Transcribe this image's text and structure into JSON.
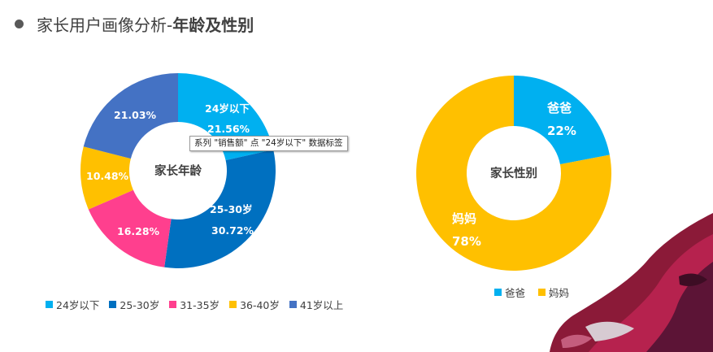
{
  "header": {
    "title_plain": "家长用户画像分析-",
    "title_bold": "年龄及性别"
  },
  "tooltip": "系列 \"销售额\" 点 \"24岁以下\" 数据标签",
  "chart_data": [
    {
      "type": "pie",
      "center_label": "家长年龄",
      "categories": [
        "24岁以下",
        "25-30岁",
        "31-35岁",
        "36-40岁",
        "41岁以上"
      ],
      "values": [
        21.56,
        30.72,
        16.28,
        10.48,
        21.03
      ],
      "labels": [
        "21.56%",
        "30.72%",
        "16.28%",
        "10.48%",
        "21.03%"
      ],
      "colors": [
        "#00b0f0",
        "#0070c0",
        "#ff3f8e",
        "#ffc000",
        "#4472c4"
      ],
      "legend_placement": "bottom"
    },
    {
      "type": "pie",
      "center_label": "家长性别",
      "categories": [
        "爸爸",
        "妈妈"
      ],
      "values": [
        22,
        78
      ],
      "labels": [
        "22%",
        "78%"
      ],
      "colors": [
        "#00b0f0",
        "#ffc000"
      ],
      "legend_placement": "bottom"
    }
  ]
}
